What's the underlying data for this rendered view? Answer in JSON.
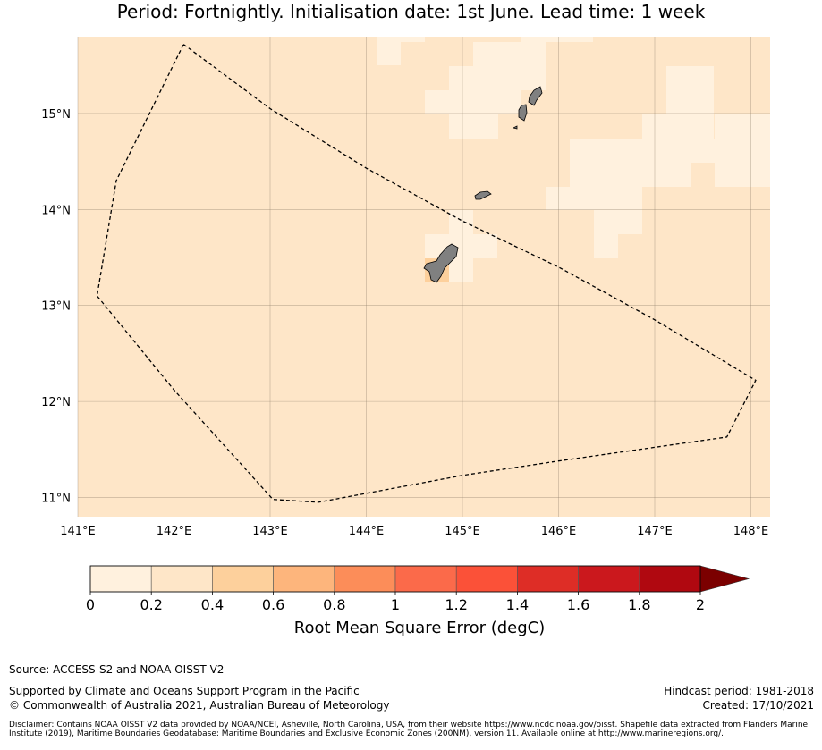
{
  "title": "Period: Fortnightly. Initialisation date: 1st June. Lead time: 1 week",
  "map": {
    "lon_ticks": [
      "141°E",
      "142°E",
      "143°E",
      "144°E",
      "145°E",
      "146°E",
      "147°E",
      "148°E"
    ],
    "lat_ticks": [
      "15°N",
      "14°N",
      "13°N",
      "12°N",
      "11°N"
    ],
    "extent": {
      "lon_min": 141.0,
      "lon_max": 148.2,
      "lat_min": 10.8,
      "lat_max": 15.8
    },
    "background_color": "#fee6c8",
    "low_error_color": "#fff1de",
    "land_color": "#808080",
    "eez_boundary": [
      [
        142.1,
        15.72
      ],
      [
        143.0,
        15.05
      ],
      [
        144.0,
        14.43
      ],
      [
        145.0,
        13.88
      ],
      [
        146.0,
        13.4
      ],
      [
        147.0,
        12.85
      ],
      [
        148.05,
        12.22
      ],
      [
        147.75,
        11.63
      ],
      [
        146.0,
        11.38
      ],
      [
        145.0,
        11.23
      ],
      [
        143.5,
        10.95
      ],
      [
        143.03,
        10.98
      ],
      [
        142.0,
        12.12
      ],
      [
        141.2,
        13.1
      ],
      [
        141.4,
        14.3
      ],
      [
        142.1,
        15.72
      ]
    ]
  },
  "colorbar": {
    "ticks": [
      "0",
      "0.2",
      "0.4",
      "0.6",
      "0.8",
      "1",
      "1.2",
      "1.4",
      "1.6",
      "1.8",
      "2"
    ],
    "colors": [
      "#fff1de",
      "#fee6c8",
      "#fdd09c",
      "#fdb57c",
      "#fc8d59",
      "#fb6a4a",
      "#fb5138",
      "#de2d26",
      "#cb181d",
      "#b00810",
      "#7b0000"
    ],
    "label": "Root Mean Square Error (degC)"
  },
  "footer": {
    "source": "Source: ACCESS-S2 and NOAA OISST V2",
    "supported": "Supported by Climate and Oceans Support Program in the Pacific",
    "copyright": "© Commonwealth of Australia 2021, Australian Bureau of Meteorology",
    "hindcast": "Hindcast period: 1981-2018",
    "created": "Created: 17/10/2021",
    "disclaimer": "Disclaimer: Contains NOAA OISST V2 data provided by NOAA/NCEI, Asheville, North Carolina, USA, from their website https://www.ncdc.noaa.gov/oisst. Shapefile data extracted from Flanders Marine Institute (2019), Maritime Boundaries Geodatabase: Maritime Boundaries and Exclusive Economic Zones (200NM), version 11. Available online at http://www.marineregions.org/."
  }
}
